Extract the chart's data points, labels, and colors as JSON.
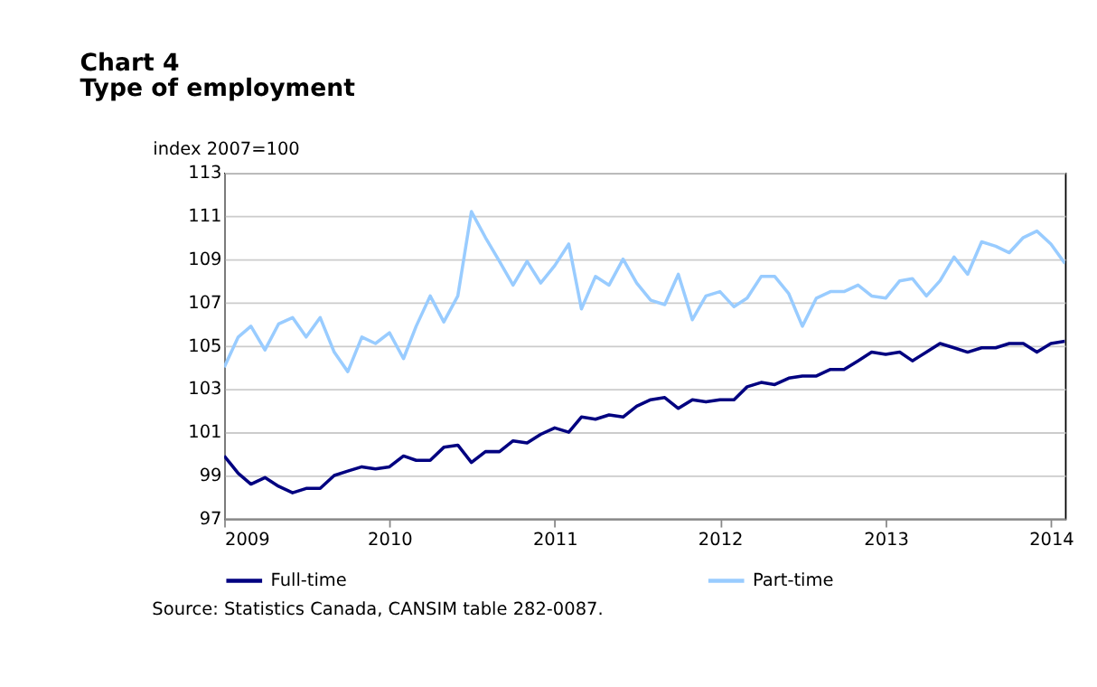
{
  "chart_data": {
    "type": "line",
    "title": "Chart 4",
    "subtitle": "Type of employment",
    "ylabel": "index 2007=100",
    "x": [
      "2009-01",
      "2009-02",
      "2009-03",
      "2009-04",
      "2009-05",
      "2009-06",
      "2009-07",
      "2009-08",
      "2009-09",
      "2009-10",
      "2009-11",
      "2009-12",
      "2010-01",
      "2010-02",
      "2010-03",
      "2010-04",
      "2010-05",
      "2010-06",
      "2010-07",
      "2010-08",
      "2010-09",
      "2010-10",
      "2010-11",
      "2010-12",
      "2011-01",
      "2011-02",
      "2011-03",
      "2011-04",
      "2011-05",
      "2011-06",
      "2011-07",
      "2011-08",
      "2011-09",
      "2011-10",
      "2011-11",
      "2011-12",
      "2012-01",
      "2012-02",
      "2012-03",
      "2012-04",
      "2012-05",
      "2012-06",
      "2012-07",
      "2012-08",
      "2012-09",
      "2012-10",
      "2012-11",
      "2012-12",
      "2013-01",
      "2013-02",
      "2013-03",
      "2013-04",
      "2013-05",
      "2013-06",
      "2013-07",
      "2013-08",
      "2013-09",
      "2013-10",
      "2013-11",
      "2013-12",
      "2014-01",
      "2014-02"
    ],
    "series": [
      {
        "name": "Full-time",
        "color": "#000080",
        "values": [
          99.9,
          99.1,
          98.6,
          98.9,
          98.5,
          98.2,
          98.4,
          98.4,
          99.0,
          99.2,
          99.4,
          99.3,
          99.4,
          99.9,
          99.7,
          99.7,
          100.3,
          100.4,
          99.6,
          100.1,
          100.1,
          100.6,
          100.5,
          100.9,
          101.2,
          101.0,
          101.7,
          101.6,
          101.8,
          101.7,
          102.2,
          102.5,
          102.6,
          102.1,
          102.5,
          102.4,
          102.5,
          102.5,
          103.1,
          103.3,
          103.2,
          103.5,
          103.6,
          103.6,
          103.9,
          103.9,
          104.3,
          104.7,
          104.6,
          104.7,
          104.3,
          104.7,
          105.1,
          104.9,
          104.7,
          104.9,
          104.9,
          105.1,
          105.1,
          104.7,
          105.1,
          105.2
        ]
      },
      {
        "name": "Part-time",
        "color": "#99ccff",
        "values": [
          104.0,
          105.4,
          105.9,
          104.8,
          106.0,
          106.3,
          105.4,
          106.3,
          104.7,
          103.8,
          105.4,
          105.1,
          105.6,
          104.4,
          105.9,
          107.3,
          106.1,
          107.3,
          111.2,
          110.0,
          108.9,
          107.8,
          108.9,
          107.9,
          108.7,
          109.7,
          106.7,
          108.2,
          107.8,
          109.0,
          107.9,
          107.1,
          106.9,
          108.3,
          106.2,
          107.3,
          107.5,
          106.8,
          107.2,
          108.2,
          108.2,
          107.4,
          105.9,
          107.2,
          107.5,
          107.5,
          107.8,
          107.3,
          107.2,
          108.0,
          108.1,
          107.3,
          108.0,
          109.1,
          108.3,
          109.8,
          109.6,
          109.3,
          110.0,
          110.3,
          109.7,
          108.8
        ]
      }
    ],
    "xlim": [
      "2009-01",
      "2014-02"
    ],
    "xticks": [
      "2009",
      "2010",
      "2011",
      "2012",
      "2013",
      "2014"
    ],
    "ylim": [
      97,
      113
    ],
    "yticks": [
      97,
      99,
      101,
      103,
      105,
      107,
      109,
      111,
      113
    ],
    "grid": "y",
    "legend": "bottom",
    "annotations": [
      "Source: Statistics Canada, CANSIM table 282-0087."
    ]
  }
}
